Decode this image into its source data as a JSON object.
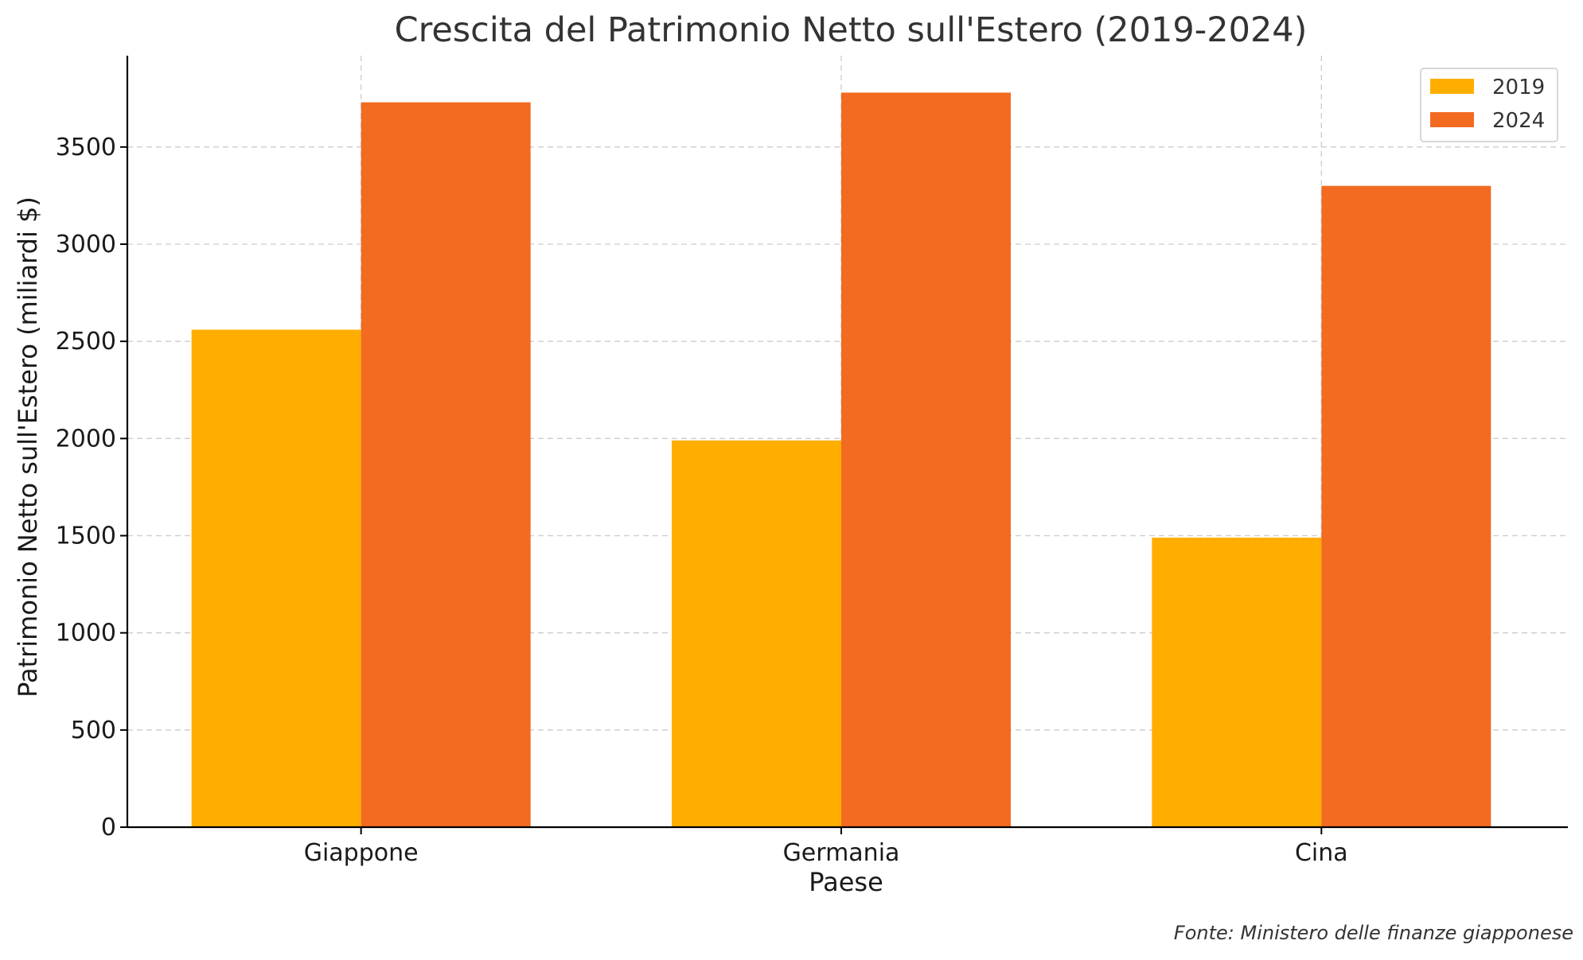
{
  "chart_data": {
    "type": "bar",
    "title": "Crescita del Patrimonio Netto sull'Estero (2019-2024)",
    "xlabel": "Paese",
    "ylabel": "Patrimonio Netto sull'Estero (miliardi $)",
    "categories": [
      "Giappone",
      "Germania",
      "Cina"
    ],
    "series": [
      {
        "name": "2019",
        "values": [
          2560,
          1990,
          1490
        ],
        "color": "#FFAE00"
      },
      {
        "name": "2024",
        "values": [
          3730,
          3780,
          3300
        ],
        "color": "#F26B21"
      }
    ],
    "ylim": [
      0,
      3970
    ],
    "yticks": [
      0,
      500,
      1000,
      1500,
      2000,
      2500,
      3000,
      3500
    ],
    "grid": true,
    "legend_position": "top-right",
    "source": "Fonte: Ministero delle finanze giapponese"
  }
}
